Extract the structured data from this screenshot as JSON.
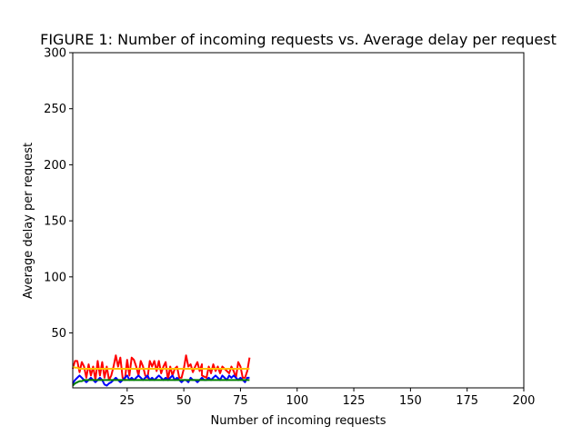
{
  "chart_data": {
    "type": "line",
    "title": "FIGURE 1: Number of incoming requests vs. Average delay per request",
    "xlabel": "Number of incoming requests",
    "ylabel": "Average delay per request",
    "xlim": [
      1,
      200
    ],
    "ylim": [
      1,
      300
    ],
    "xticks": [
      25,
      50,
      75,
      100,
      125,
      150,
      175,
      200
    ],
    "yticks": [
      50,
      100,
      150,
      200,
      250,
      300
    ],
    "grid": false,
    "legend": "none",
    "series": [
      {
        "color": "#ff0000",
        "x": [
          1,
          2,
          3,
          4,
          5,
          6,
          7,
          8,
          9,
          10,
          11,
          12,
          13,
          14,
          15,
          16,
          17,
          18,
          19,
          20,
          21,
          22,
          23,
          24,
          25,
          26,
          27,
          28,
          29,
          30,
          31,
          32,
          33,
          34,
          35,
          36,
          37,
          38,
          39,
          40,
          41,
          42,
          43,
          44,
          45,
          46,
          47,
          48,
          49,
          50,
          51,
          52,
          53,
          54,
          55,
          56,
          57,
          58,
          58,
          60,
          61,
          62,
          63,
          64,
          65,
          66,
          67,
          68,
          69,
          70,
          71,
          72,
          73,
          74,
          75,
          76,
          77,
          78,
          79
        ],
        "values": [
          18,
          25,
          25,
          15,
          24,
          20,
          10,
          22,
          12,
          20,
          8,
          25,
          12,
          24,
          10,
          20,
          8,
          12,
          20,
          30,
          20,
          28,
          10,
          8,
          26,
          12,
          28,
          26,
          20,
          12,
          25,
          20,
          12,
          10,
          25,
          20,
          25,
          16,
          25,
          14,
          20,
          24,
          8,
          20,
          12,
          18,
          20,
          10,
          10,
          18,
          30,
          20,
          22,
          15,
          20,
          24,
          16,
          22,
          12,
          10,
          20,
          14,
          22,
          16,
          20,
          14,
          20,
          18,
          16,
          14,
          20,
          16,
          10,
          24,
          20,
          10,
          10,
          16,
          28
        ]
      },
      {
        "color": "#0000ff",
        "x": [
          1,
          2,
          3,
          4,
          5,
          6,
          7,
          8,
          9,
          10,
          11,
          12,
          13,
          14,
          15,
          16,
          17,
          18,
          19,
          20,
          21,
          22,
          23,
          24,
          25,
          26,
          27,
          28,
          29,
          30,
          31,
          32,
          33,
          34,
          35,
          36,
          37,
          38,
          39,
          40,
          41,
          42,
          43,
          44,
          45,
          46,
          47,
          48,
          49,
          50,
          51,
          52,
          53,
          54,
          55,
          56,
          57,
          58,
          59,
          60,
          61,
          62,
          63,
          64,
          65,
          66,
          67,
          68,
          69,
          70,
          71,
          72,
          73,
          74,
          75,
          76,
          77,
          78,
          79
        ],
        "values": [
          5,
          8,
          10,
          12,
          10,
          8,
          6,
          8,
          10,
          8,
          6,
          8,
          10,
          8,
          4,
          3,
          5,
          6,
          8,
          10,
          8,
          6,
          8,
          10,
          12,
          8,
          10,
          8,
          10,
          12,
          10,
          8,
          10,
          12,
          8,
          10,
          8,
          10,
          12,
          10,
          8,
          10,
          8,
          10,
          12,
          8,
          10,
          8,
          6,
          8,
          8,
          6,
          10,
          8,
          8,
          6,
          8,
          10,
          8,
          8,
          10,
          8,
          10,
          12,
          10,
          8,
          12,
          10,
          8,
          12,
          10,
          12,
          10,
          8,
          10,
          8,
          6,
          10,
          10
        ]
      },
      {
        "color": "#008000",
        "x": [
          1,
          2,
          3,
          4,
          5,
          6,
          7,
          8,
          9,
          10,
          11,
          12,
          13,
          14,
          15,
          16,
          17,
          18,
          19,
          20,
          21,
          22,
          23,
          24,
          25,
          26,
          27,
          28,
          29,
          30,
          31,
          32,
          33,
          34,
          35,
          36,
          37,
          38,
          39,
          40,
          41,
          42,
          43,
          44,
          45,
          46,
          47,
          48,
          49,
          50,
          51,
          52,
          53,
          54,
          55,
          56,
          57,
          58,
          59,
          60,
          61,
          62,
          63,
          64,
          65,
          66,
          67,
          68,
          69,
          70,
          71,
          72,
          73,
          74,
          75,
          76,
          77,
          78,
          79
        ],
        "values": [
          3,
          5,
          6,
          7,
          7,
          8,
          8,
          8,
          8,
          8,
          8,
          8,
          8,
          8,
          8,
          8,
          8,
          8,
          8,
          8,
          8,
          8,
          8,
          8,
          8,
          8,
          8,
          8,
          8,
          8,
          8,
          8,
          8,
          8,
          8,
          8,
          8,
          8,
          8,
          8,
          8,
          8,
          8,
          8,
          8,
          8,
          8,
          8,
          8,
          8,
          8,
          8,
          8,
          8,
          8,
          8,
          8,
          8,
          8,
          8,
          8,
          8,
          8,
          8,
          8,
          8,
          8,
          8,
          8,
          8,
          8,
          8,
          8,
          8,
          8,
          8,
          8,
          8,
          8
        ]
      },
      {
        "color": "#ffbf00",
        "x": [
          1,
          2,
          3,
          4,
          5,
          6,
          7,
          8,
          9,
          10,
          11,
          12,
          13,
          14,
          15,
          16,
          17,
          18,
          19,
          20,
          21,
          22,
          23,
          24,
          25,
          26,
          27,
          28,
          29,
          30,
          31,
          32,
          33,
          34,
          35,
          36,
          37,
          38,
          39,
          40,
          41,
          42,
          43,
          44,
          45,
          46,
          47,
          48,
          49,
          50,
          51,
          52,
          53,
          54,
          55,
          56,
          57,
          58,
          59,
          60,
          61,
          62,
          63,
          64,
          65,
          66,
          67,
          68,
          69,
          70,
          71,
          72,
          73,
          74,
          75,
          76,
          77,
          78,
          79
        ],
        "values": [
          20,
          19,
          19,
          18,
          18,
          18,
          18,
          18,
          18,
          18,
          18,
          18,
          18,
          18,
          18,
          18,
          18,
          18,
          18,
          18,
          18,
          18,
          18,
          18,
          18,
          18,
          18,
          18,
          18,
          18,
          18,
          18,
          18,
          18,
          18,
          18,
          18,
          18,
          18,
          18,
          18,
          18,
          18,
          18,
          18,
          18,
          18,
          18,
          18,
          18,
          18,
          18,
          18,
          18,
          18,
          18,
          18,
          18,
          18,
          18,
          18,
          18,
          18,
          18,
          18,
          18,
          18,
          18,
          18,
          18,
          18,
          18,
          18,
          18,
          18,
          18,
          18,
          18,
          18
        ]
      }
    ]
  }
}
